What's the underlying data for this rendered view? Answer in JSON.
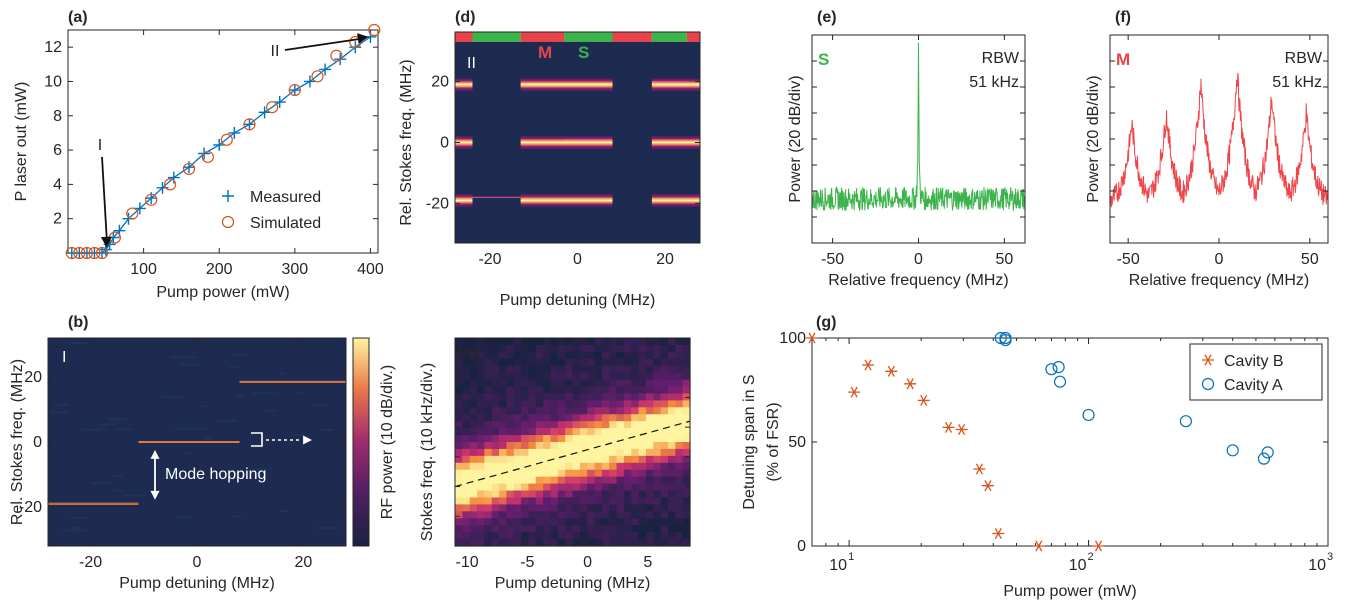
{
  "colors": {
    "measured": "#0072bd",
    "simulated": "#d95319",
    "cavity_b": "#d95319",
    "cavity_a": "#0072bd",
    "spectrum_s": "#3cb44b",
    "spectrum_m": "#f0454a",
    "map_background": "#1c2b4f",
    "band_hot": "#ffd23c",
    "state_s": "#3cb44b",
    "state_m": "#e8434a"
  },
  "chart_data": [
    {
      "id": "a",
      "type": "line",
      "panel_label": "(a)",
      "xlabel": "Pump power (mW)",
      "ylabel": "P laser out (mW)",
      "xlim": [
        0,
        410
      ],
      "ylim": [
        0,
        13
      ],
      "xticks": [
        100,
        200,
        300,
        400
      ],
      "yticks": [
        2,
        4,
        6,
        8,
        10,
        12
      ],
      "legend_position": "bottom-right",
      "series": [
        {
          "name": "Measured",
          "marker": "plus",
          "x": [
            5,
            15,
            25,
            35,
            45,
            50,
            55,
            60,
            68,
            80,
            95,
            110,
            125,
            140,
            160,
            180,
            200,
            220,
            240,
            260,
            280,
            300,
            320,
            340,
            360,
            380,
            400
          ],
          "y": [
            0,
            0,
            0,
            0,
            0,
            0.2,
            0.5,
            0.9,
            1.3,
            2.0,
            2.6,
            3.2,
            3.8,
            4.4,
            5.0,
            5.8,
            6.3,
            7.0,
            7.5,
            8.2,
            8.8,
            9.5,
            10.0,
            10.7,
            11.3,
            12.0,
            12.6
          ]
        },
        {
          "name": "Simulated",
          "marker": "circle",
          "x": [
            5,
            15,
            25,
            35,
            45,
            62,
            85,
            110,
            135,
            160,
            185,
            210,
            240,
            270,
            300,
            330,
            355,
            380,
            405
          ],
          "y": [
            0,
            0,
            0,
            0,
            0,
            0.9,
            2.3,
            3.1,
            4.0,
            4.9,
            5.6,
            6.6,
            7.5,
            8.5,
            9.5,
            10.3,
            11.5,
            12.3,
            13.0
          ]
        }
      ],
      "annotations": [
        {
          "text": "I",
          "arrow_to": [
            50,
            0.2
          ]
        },
        {
          "text": "II",
          "arrow_to": [
            400,
            12.6
          ]
        }
      ]
    },
    {
      "id": "b",
      "type": "heatmap",
      "panel_label": "(b)",
      "xlabel": "Pump detuning (MHz)",
      "ylabel": "Rel. Stokes freq. (MHz)",
      "xlim": [
        -28,
        28
      ],
      "ylim": [
        -32,
        32
      ],
      "xticks": [
        -20,
        0,
        20
      ],
      "yticks": [
        -20,
        0,
        20
      ],
      "regime_label": "I",
      "annotation": "Mode hopping",
      "lines": [
        {
          "x0": -28,
          "x1": -11,
          "y": -19
        },
        {
          "x0": -11,
          "x1": 8,
          "y": 0
        },
        {
          "x0": 8,
          "x1": 28,
          "y": 18.5
        }
      ],
      "colorbar_label": "RF power (10 dB/div.)"
    },
    {
      "id": "c",
      "type": "heatmap",
      "panel_label": "(c)",
      "xlabel": "Pump detuning (MHz)",
      "ylabel": "Stokes freq. (10 kHz/div.)",
      "xlim": [
        -11,
        8.5
      ],
      "xticks": [
        -10,
        -5,
        0,
        5
      ],
      "ydivs": 7,
      "ridge": {
        "x0": -11,
        "y0": 2.0,
        "x1": 8.5,
        "y1": 4.2
      }
    },
    {
      "id": "d",
      "type": "heatmap",
      "panel_label": "(d)",
      "xlabel": "Pump detuning (MHz)",
      "ylabel": "Rel. Stokes freq. (MHz)",
      "xlim": [
        -28,
        28
      ],
      "ylim": [
        -33,
        33
      ],
      "xticks": [
        -20,
        0,
        20
      ],
      "yticks": [
        -20,
        0,
        20
      ],
      "regime_label": "II",
      "state_labels": [
        "M",
        "S"
      ],
      "state_bar": [
        {
          "x0": -28,
          "x1": -24,
          "state": "M"
        },
        {
          "x0": -24,
          "x1": -13,
          "state": "S"
        },
        {
          "x0": -13,
          "x1": -3,
          "state": "M"
        },
        {
          "x0": -3,
          "x1": 8,
          "state": "S"
        },
        {
          "x0": 8,
          "x1": 17,
          "state": "M"
        },
        {
          "x0": 17,
          "x1": 25,
          "state": "S"
        },
        {
          "x0": 25,
          "x1": 28,
          "state": "M"
        }
      ],
      "bands": [
        -19,
        0,
        19
      ],
      "gaps": [
        [
          -24,
          -13
        ],
        [
          8,
          17
        ]
      ],
      "lines": [
        {
          "x0": -24,
          "x1": -13,
          "y": -18
        },
        {
          "x0": -3,
          "x1": 8,
          "y": 1
        },
        {
          "x0": 17,
          "x1": 25,
          "y": 20
        }
      ]
    },
    {
      "id": "e",
      "type": "line",
      "panel_label": "(e)",
      "xlabel": "Relative frequency (MHz)",
      "ylabel": "Power (20 dB/div)",
      "xlim": [
        -62,
        62
      ],
      "xticks": [
        -50,
        0,
        50
      ],
      "ydivs": 8,
      "state_label": "S",
      "rbw_text": [
        "RBW",
        "51 kHz"
      ],
      "noise_floor_div": 1.7,
      "peaks": [
        {
          "x": 0,
          "height_div": 7.6
        }
      ]
    },
    {
      "id": "f",
      "type": "line",
      "panel_label": "(f)",
      "xlabel": "Relative frequency (MHz)",
      "ylabel": "Power (20 dB/div)",
      "xlim": [
        -60,
        60
      ],
      "xticks": [
        -50,
        0,
        50
      ],
      "ydivs": 8,
      "state_label": "M",
      "rbw_text": [
        "RBW",
        "51 kHz"
      ],
      "noise_floor_div": 1.4,
      "peaks": [
        {
          "x": -48,
          "height_div": 4.6
        },
        {
          "x": -29,
          "height_div": 5.0
        },
        {
          "x": -10,
          "height_div": 6.2
        },
        {
          "x": 10,
          "height_div": 6.6
        },
        {
          "x": 29,
          "height_div": 5.6
        },
        {
          "x": 48,
          "height_div": 5.0
        }
      ]
    },
    {
      "id": "g",
      "type": "scatter",
      "panel_label": "(g)",
      "xlabel": "Pump power (mW)",
      "ylabel": [
        "Detuning span in S",
        "(% of FSR)"
      ],
      "xscale": "log",
      "xlim": [
        7,
        1000
      ],
      "ylim": [
        0,
        100
      ],
      "xticks": [
        {
          "base": "10",
          "exp": "1",
          "value": 10
        },
        {
          "base": "10",
          "exp": "2",
          "value": 100
        },
        {
          "base": "10",
          "exp": "3",
          "value": 1000
        }
      ],
      "yticks": [
        0,
        50,
        100
      ],
      "legend_position": "top-right",
      "series": [
        {
          "name": "Cavity B",
          "marker": "asterisk",
          "x": [
            7,
            10.5,
            12,
            15,
            18,
            20.5,
            26,
            29.5,
            35,
            38,
            42,
            62,
            110
          ],
          "y": [
            100,
            74,
            87,
            84,
            78,
            70,
            57,
            56,
            37,
            29,
            6,
            0,
            0
          ]
        },
        {
          "name": "Cavity A",
          "marker": "circle",
          "x": [
            43,
            45,
            45,
            70,
            75,
            76,
            100,
            255,
            400,
            540,
            560
          ],
          "y": [
            100,
            100,
            99,
            85,
            86,
            79,
            63,
            60,
            46,
            42,
            45
          ]
        }
      ]
    }
  ]
}
